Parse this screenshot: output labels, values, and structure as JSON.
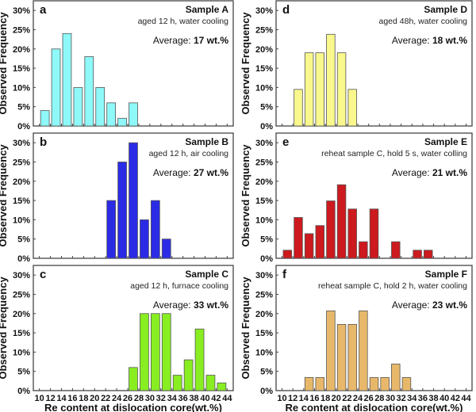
{
  "chart_data": [
    {
      "type": "bar",
      "panel": "a",
      "title": "Sample A",
      "subtitle": "aged 12 h, water cooling",
      "average_label": "Average: ",
      "average_value": "17 wt.%",
      "color": "#8ff8f8",
      "ylabel": "Observed Frequency",
      "xlabel": "",
      "ylim": [
        0,
        32.5
      ],
      "yticks": [
        "0%",
        "5%",
        "10%",
        "15%",
        "20%",
        "25%",
        "30%"
      ],
      "bins": [
        [
          10,
          12,
          4
        ],
        [
          12,
          14,
          20
        ],
        [
          14,
          16,
          24
        ],
        [
          16,
          18,
          10
        ],
        [
          18,
          20,
          18
        ],
        [
          20,
          22,
          10
        ],
        [
          22,
          24,
          6
        ],
        [
          24,
          26,
          2
        ],
        [
          26,
          28,
          6
        ]
      ]
    },
    {
      "type": "bar",
      "panel": "b",
      "title": "Sample B",
      "subtitle": "aged 12 h, air cooling",
      "average_label": "Average: ",
      "average_value": "27 wt.%",
      "color": "#2b2be6",
      "ylabel": "Observed Frequency",
      "xlabel": "",
      "ylim": [
        0,
        32.5
      ],
      "yticks": [
        "0%",
        "5%",
        "10%",
        "15%",
        "20%",
        "25%",
        "30%"
      ],
      "bins": [
        [
          22,
          24,
          15
        ],
        [
          24,
          26,
          25
        ],
        [
          26,
          28,
          30
        ],
        [
          28,
          30,
          10
        ],
        [
          30,
          32,
          15
        ],
        [
          32,
          34,
          5
        ]
      ]
    },
    {
      "type": "bar",
      "panel": "c",
      "title": "Sample C",
      "subtitle": "aged 12 h, furnace cooling",
      "average_label": "Average: ",
      "average_value": "33 wt.%",
      "color": "#88ee22",
      "ylabel": "Observed Frequency",
      "xlabel": "Re content at dislocation core(wt.%)",
      "ylim": [
        0,
        32.5
      ],
      "yticks": [
        "0%",
        "5%",
        "10%",
        "15%",
        "20%",
        "25%",
        "30%"
      ],
      "bins": [
        [
          26,
          28,
          6
        ],
        [
          28,
          30,
          20
        ],
        [
          30,
          32,
          20
        ],
        [
          32,
          34,
          20
        ],
        [
          34,
          36,
          4
        ],
        [
          36,
          38,
          8
        ],
        [
          38,
          40,
          16
        ],
        [
          40,
          42,
          4
        ],
        [
          42,
          44,
          2
        ]
      ]
    },
    {
      "type": "bar",
      "panel": "d",
      "title": "Sample D",
      "subtitle": "aged 48h, water cooling",
      "average_label": "Average: ",
      "average_value": "18 wt.%",
      "color": "#f8f88c",
      "ylabel": "Observed Frequency",
      "xlabel": "",
      "ylim": [
        0,
        32.5
      ],
      "yticks": [
        "0%",
        "5%",
        "10%",
        "15%",
        "20%",
        "25%",
        "30%"
      ],
      "bins": [
        [
          12,
          14,
          9.5
        ],
        [
          14,
          16,
          19
        ],
        [
          16,
          18,
          19
        ],
        [
          18,
          20,
          23.8
        ],
        [
          20,
          22,
          19
        ],
        [
          22,
          24,
          9.5
        ]
      ]
    },
    {
      "type": "bar",
      "panel": "e",
      "title": "Sample E",
      "subtitle": "reheat sample C, hold 5 s, water colling",
      "average_label": "Average: ",
      "average_value": "21 wt.%",
      "color": "#cc1a1e",
      "ylabel": "Observed Frequency",
      "xlabel": "",
      "ylim": [
        0,
        32.5
      ],
      "yticks": [
        "0%",
        "5%",
        "10%",
        "15%",
        "20%",
        "25%",
        "30%"
      ],
      "bins": [
        [
          10,
          12,
          2.1
        ],
        [
          12,
          14,
          10.6
        ],
        [
          14,
          16,
          6.4
        ],
        [
          16,
          18,
          8.5
        ],
        [
          18,
          20,
          14.9
        ],
        [
          20,
          22,
          19.1
        ],
        [
          22,
          24,
          12.8
        ],
        [
          24,
          26,
          4.3
        ],
        [
          26,
          28,
          12.8
        ],
        [
          30,
          32,
          4.3
        ],
        [
          34,
          36,
          2.1
        ],
        [
          36,
          38,
          2.1
        ]
      ]
    },
    {
      "type": "bar",
      "panel": "f",
      "title": "Sample F",
      "subtitle": "reheat sample C, hold 2 h, water cooling",
      "average_label": "Average: ",
      "average_value": "23 wt.%",
      "color": "#e8b86a",
      "ylabel": "Observed Frequency",
      "xlabel": "Re content at dislocation core(wt.%)",
      "ylim": [
        0,
        32.5
      ],
      "yticks": [
        "0%",
        "5%",
        "10%",
        "15%",
        "20%",
        "25%",
        "30%"
      ],
      "bins": [
        [
          14,
          16,
          3.4
        ],
        [
          16,
          18,
          3.4
        ],
        [
          18,
          20,
          20.7
        ],
        [
          20,
          22,
          17.2
        ],
        [
          22,
          24,
          17.2
        ],
        [
          24,
          26,
          20.7
        ],
        [
          26,
          28,
          3.4
        ],
        [
          28,
          30,
          3.4
        ],
        [
          30,
          32,
          6.9
        ],
        [
          32,
          34,
          3.4
        ]
      ]
    }
  ],
  "xticks": [
    "10",
    "12",
    "14",
    "16",
    "18",
    "20",
    "22",
    "24",
    "26",
    "28",
    "30",
    "32",
    "34",
    "36",
    "38",
    "40",
    "42",
    "44"
  ],
  "xtick_values": [
    10,
    12,
    14,
    16,
    18,
    20,
    22,
    24,
    26,
    28,
    30,
    32,
    34,
    36,
    38,
    40,
    42,
    44
  ],
  "xlim": [
    8.9,
    45.1
  ]
}
